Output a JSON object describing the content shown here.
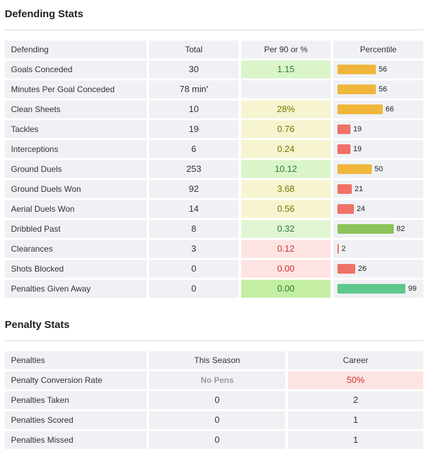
{
  "defending": {
    "title": "Defending Stats",
    "headers": {
      "name": "Defending",
      "total": "Total",
      "per90": "Per 90 or %",
      "percentile": "Percentile"
    },
    "rows": [
      {
        "name": "Goals Conceded",
        "total": "30",
        "per90": "1.15",
        "per90_bg": "#d9f5c9",
        "per90_color": "#2e7d32",
        "percentile": 56,
        "bar_color": "#f0b63a"
      },
      {
        "name": "Minutes Per Goal Conceded",
        "total": "78 min'",
        "per90": "",
        "per90_bg": "#eff1f4",
        "per90_color": "#333333",
        "percentile": 56,
        "bar_color": "#f0b63a"
      },
      {
        "name": "Clean Sheets",
        "total": "10",
        "per90": "28%",
        "per90_bg": "#f7f5cf",
        "per90_color": "#7a7200",
        "percentile": 66,
        "bar_color": "#f0b63a"
      },
      {
        "name": "Tackles",
        "total": "19",
        "per90": "0.76",
        "per90_bg": "#f7f5cf",
        "per90_color": "#7a7200",
        "percentile": 19,
        "bar_color": "#f07167"
      },
      {
        "name": "Interceptions",
        "total": "6",
        "per90": "0.24",
        "per90_bg": "#f7f5cf",
        "per90_color": "#7a7200",
        "percentile": 19,
        "bar_color": "#f07167"
      },
      {
        "name": "Ground Duels",
        "total": "253",
        "per90": "10.12",
        "per90_bg": "#d9f5c9",
        "per90_color": "#2e7d32",
        "percentile": 50,
        "bar_color": "#f0b63a"
      },
      {
        "name": "Ground Duels Won",
        "total": "92",
        "per90": "3.68",
        "per90_bg": "#f7f5cf",
        "per90_color": "#7a7200",
        "percentile": 21,
        "bar_color": "#f07167"
      },
      {
        "name": "Aerial Duels Won",
        "total": "14",
        "per90": "0.56",
        "per90_bg": "#f7f5cf",
        "per90_color": "#7a7200",
        "percentile": 24,
        "bar_color": "#f07167"
      },
      {
        "name": "Dribbled Past",
        "total": "8",
        "per90": "0.32",
        "per90_bg": "#e1f5d3",
        "per90_color": "#2e7d32",
        "percentile": 82,
        "bar_color": "#8cc35a"
      },
      {
        "name": "Clearances",
        "total": "3",
        "per90": "0.12",
        "per90_bg": "#fde4e2",
        "per90_color": "#d32f2f",
        "percentile": 2,
        "bar_color": "#f07167"
      },
      {
        "name": "Shots Blocked",
        "total": "0",
        "per90": "0.00",
        "per90_bg": "#fde4e2",
        "per90_color": "#d32f2f",
        "percentile": 26,
        "bar_color": "#f07167"
      },
      {
        "name": "Penalties Given Away",
        "total": "0",
        "per90": "0.00",
        "per90_bg": "#c4eea4",
        "per90_color": "#2e7d32",
        "percentile": 99,
        "bar_color": "#5ec88c"
      }
    ]
  },
  "penalty": {
    "title": "Penalty Stats",
    "headers": {
      "name": "Penalties",
      "season": "This Season",
      "career": "Career"
    },
    "rows": [
      {
        "name": "Penalty Conversion Rate",
        "season": "No Pens",
        "career": "50%",
        "career_bg": "#fde4e2",
        "career_color": "#d32f2f"
      },
      {
        "name": "Penalties Taken",
        "season": "0",
        "career": "2",
        "career_bg": "#eff1f4",
        "career_color": "#333333"
      },
      {
        "name": "Penalties Scored",
        "season": "0",
        "career": "1",
        "career_bg": "#eff1f4",
        "career_color": "#333333"
      },
      {
        "name": "Penalties Missed",
        "season": "0",
        "career": "1",
        "career_bg": "#eff1f4",
        "career_color": "#333333"
      }
    ]
  }
}
